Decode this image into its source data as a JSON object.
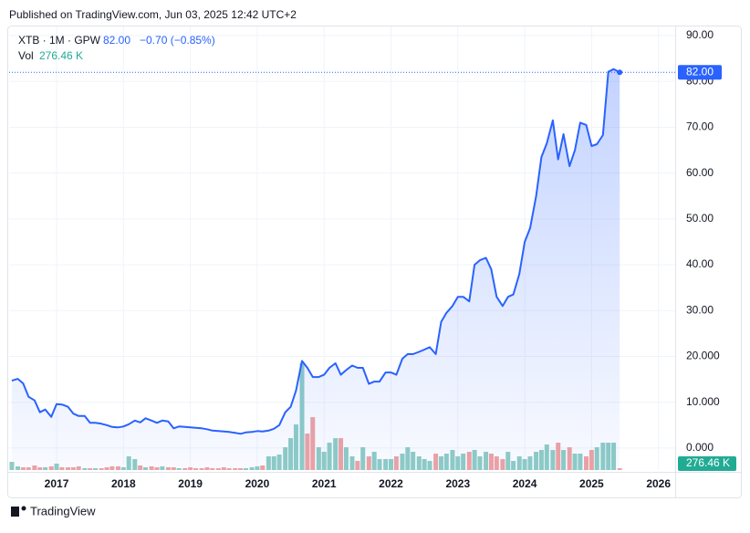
{
  "header": {
    "published": "Published on TradingView.com, Jun 03, 2025 12:42 UTC+2",
    "brand": "TradingView"
  },
  "chart_data": {
    "type": "line",
    "symbol": "XTB · 1M · GPW",
    "change": "−0.70 (−0.85%)",
    "volume_label": "Vol",
    "x": [
      2016.33,
      2016.42,
      2016.5,
      2016.58,
      2016.67,
      2016.75,
      2016.83,
      2016.92,
      2017.0,
      2017.08,
      2017.17,
      2017.25,
      2017.33,
      2017.42,
      2017.5,
      2017.58,
      2017.67,
      2017.75,
      2017.83,
      2017.92,
      2018.0,
      2018.08,
      2018.17,
      2018.25,
      2018.33,
      2018.42,
      2018.5,
      2018.58,
      2018.67,
      2018.75,
      2018.83,
      2018.92,
      2019.0,
      2019.08,
      2019.17,
      2019.25,
      2019.33,
      2019.42,
      2019.5,
      2019.58,
      2019.67,
      2019.75,
      2019.83,
      2019.92,
      2020.0,
      2020.08,
      2020.17,
      2020.25,
      2020.33,
      2020.42,
      2020.5,
      2020.58,
      2020.67,
      2020.75,
      2020.83,
      2020.92,
      2021.0,
      2021.08,
      2021.17,
      2021.25,
      2021.33,
      2021.42,
      2021.5,
      2021.58,
      2021.67,
      2021.75,
      2021.83,
      2021.92,
      2022.0,
      2022.08,
      2022.17,
      2022.25,
      2022.33,
      2022.42,
      2022.5,
      2022.58,
      2022.67,
      2022.75,
      2022.83,
      2022.92,
      2023.0,
      2023.08,
      2023.17,
      2023.25,
      2023.33,
      2023.42,
      2023.5,
      2023.58,
      2023.67,
      2023.75,
      2023.83,
      2023.92,
      2024.0,
      2024.08,
      2024.17,
      2024.25,
      2024.33,
      2024.42,
      2024.5,
      2024.58,
      2024.67,
      2024.75,
      2024.83,
      2024.92,
      2025.0,
      2025.08,
      2025.17,
      2025.25,
      2025.33,
      2025.42
    ],
    "series": [
      {
        "name": "XTB",
        "color": "#2962ff",
        "values": [
          14.7,
          15.1,
          14.1,
          11.2,
          10.4,
          7.8,
          8.4,
          6.8,
          9.6,
          9.5,
          9.0,
          7.5,
          7.0,
          7.0,
          5.5,
          5.5,
          5.3,
          5.0,
          4.6,
          4.5,
          4.7,
          5.2,
          6.0,
          5.6,
          6.5,
          6.0,
          5.5,
          6.0,
          5.8,
          4.3,
          4.7,
          4.6,
          4.5,
          4.4,
          4.3,
          4.1,
          3.8,
          3.7,
          3.6,
          3.5,
          3.3,
          3.1,
          3.4,
          3.5,
          3.7,
          3.6,
          3.8,
          4.2,
          5.0,
          7.8,
          9.0,
          12.5,
          19.0,
          17.5,
          15.5,
          15.5,
          16.0,
          17.5,
          18.5,
          16.0,
          17.0,
          18.0,
          17.5,
          17.5,
          14.0,
          14.5,
          14.5,
          16.5,
          16.5,
          16.0,
          19.5,
          20.5,
          20.5,
          21.0,
          21.5,
          22.0,
          20.5,
          27.5,
          29.5,
          31.0,
          33.0,
          33.0,
          32.0,
          40.0,
          41.0,
          41.5,
          39.0,
          33.0,
          31.0,
          33.0,
          33.5,
          38.0,
          45.0,
          48.0,
          55.0,
          63.5,
          66.5,
          71.5,
          63.0,
          68.5,
          61.5,
          65.0,
          71.0,
          70.5,
          65.9,
          66.3,
          68.3,
          82.1,
          82.7,
          82.0
        ],
        "value_labels": [
          null,
          null,
          null,
          null,
          null,
          null,
          null,
          null,
          null,
          null,
          null,
          null,
          null,
          null,
          null,
          null,
          null,
          null,
          null,
          null,
          null,
          null,
          null,
          null,
          null,
          null,
          null,
          null,
          null,
          null,
          null,
          null,
          null,
          null,
          null,
          null,
          null,
          null,
          null,
          null,
          null,
          null,
          null,
          null,
          null,
          null,
          null,
          null,
          null,
          null,
          null,
          null,
          null,
          null,
          null,
          null,
          null,
          null,
          null,
          null,
          null,
          null,
          null,
          null,
          null,
          null,
          null,
          null,
          null,
          null,
          null,
          null,
          null,
          null,
          null,
          null,
          null,
          null,
          null,
          null,
          null,
          null,
          null,
          null,
          null,
          null,
          null,
          null,
          null,
          null,
          null,
          null,
          null,
          null,
          null,
          null,
          null,
          null,
          null,
          null,
          null,
          null,
          null,
          null,
          null,
          null,
          null,
          null,
          null,
          "82.00"
        ]
      },
      {
        "name": "Vol",
        "type": "bar",
        "axis": "y2",
        "up_color": "#8fcdc5",
        "down_color": "#f0a3a3",
        "label_color": "#22ab94",
        "values": [
          1260,
          560,
          420,
          420,
          700,
          420,
          420,
          560,
          980,
          420,
          420,
          420,
          560,
          280,
          280,
          280,
          280,
          420,
          560,
          560,
          420,
          2100,
          1680,
          700,
          420,
          560,
          420,
          560,
          420,
          420,
          280,
          280,
          420,
          280,
          280,
          420,
          280,
          280,
          420,
          280,
          280,
          280,
          280,
          420,
          560,
          700,
          2100,
          2100,
          2380,
          3500,
          4900,
          7000,
          16380,
          5600,
          8120,
          3500,
          2800,
          4200,
          4900,
          4900,
          3500,
          2100,
          1400,
          3500,
          2100,
          2800,
          1680,
          1680,
          1680,
          2100,
          2520,
          3500,
          2800,
          2100,
          1680,
          1400,
          2520,
          2100,
          2520,
          3080,
          2100,
          2520,
          2800,
          3080,
          2100,
          2800,
          2520,
          2100,
          1680,
          2800,
          1400,
          2100,
          1680,
          2100,
          2800,
          3080,
          3920,
          3080,
          4200,
          3080,
          3500,
          2520,
          2520,
          2100,
          3080,
          3500,
          4200,
          4200,
          4200,
          276.46
        ],
        "value_labels": [
          null,
          null,
          null,
          null,
          null,
          null,
          null,
          null,
          null,
          null,
          null,
          null,
          null,
          null,
          null,
          null,
          null,
          null,
          null,
          null,
          null,
          null,
          null,
          null,
          null,
          null,
          null,
          null,
          null,
          null,
          null,
          null,
          null,
          null,
          null,
          null,
          null,
          null,
          null,
          null,
          null,
          null,
          null,
          null,
          null,
          null,
          null,
          null,
          null,
          null,
          null,
          null,
          null,
          null,
          null,
          null,
          null,
          null,
          null,
          null,
          null,
          null,
          null,
          null,
          null,
          null,
          null,
          null,
          null,
          null,
          null,
          null,
          null,
          null,
          null,
          null,
          null,
          null,
          null,
          null,
          null,
          null,
          null,
          null,
          null,
          null,
          null,
          null,
          null,
          null,
          null,
          null,
          null,
          null,
          null,
          null,
          null,
          null,
          null,
          null,
          null,
          null,
          null,
          null,
          null,
          null,
          null,
          null,
          null,
          "276.46 K"
        ]
      }
    ],
    "xlim": [
      2016.29,
      2026.25
    ],
    "xticks": [
      2017,
      2018,
      2019,
      2020,
      2021,
      2022,
      2023,
      2024,
      2025,
      2026
    ],
    "ylim": [
      -4.8,
      91.8
    ],
    "yticks": [
      {
        "value": 0,
        "label": "0.000"
      },
      {
        "value": 10,
        "label": "10.000"
      },
      {
        "value": 20,
        "label": "20.000"
      },
      {
        "value": 30,
        "label": "30.00"
      },
      {
        "value": 40,
        "label": "40.00"
      },
      {
        "value": 50,
        "label": "50.00"
      },
      {
        "value": 60,
        "label": "60.00"
      },
      {
        "value": 70,
        "label": "70.00"
      },
      {
        "value": 80,
        "label": "80.00"
      },
      {
        "value": 90,
        "label": "90.00"
      }
    ],
    "y2lim": [
      0,
      68000
    ],
    "grid": true
  }
}
